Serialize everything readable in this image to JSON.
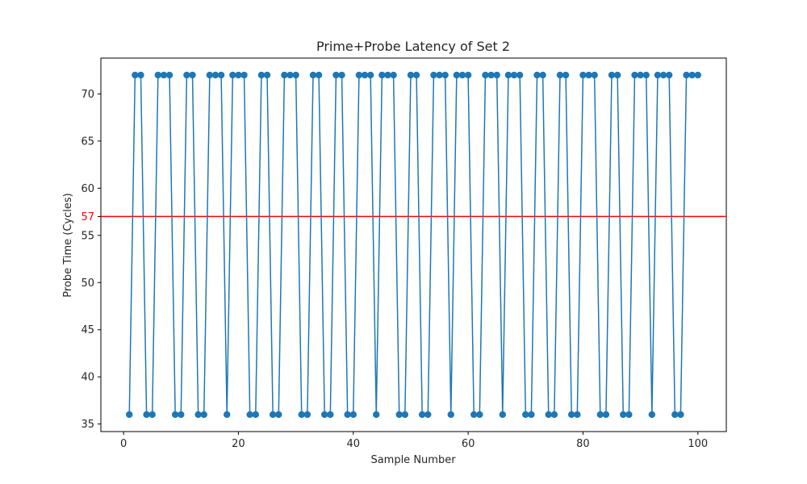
{
  "chart_data": {
    "type": "line",
    "title": "Prime+Probe Latency of Set 2",
    "xlabel": "Sample Number",
    "ylabel": "Probe Time (Cycles)",
    "xlim": [
      -3.95,
      104.95
    ],
    "ylim": [
      34.2,
      73.8
    ],
    "xticks": [
      0,
      20,
      40,
      60,
      80,
      100
    ],
    "yticks": [
      35,
      40,
      45,
      50,
      55,
      60,
      65,
      70
    ],
    "grid": false,
    "legend": "none",
    "threshold": {
      "value": 57,
      "label": "57",
      "color": "#ff0000"
    },
    "series": [
      {
        "color": "#1f77b4",
        "marker": "circle",
        "x": [
          1,
          2,
          3,
          4,
          5,
          6,
          7,
          8,
          9,
          10,
          11,
          12,
          13,
          14,
          15,
          16,
          17,
          18,
          19,
          20,
          21,
          22,
          23,
          24,
          25,
          26,
          27,
          28,
          29,
          30,
          31,
          32,
          33,
          34,
          35,
          36,
          37,
          38,
          39,
          40,
          41,
          42,
          43,
          44,
          45,
          46,
          47,
          48,
          49,
          50,
          51,
          52,
          53,
          54,
          55,
          56,
          57,
          58,
          59,
          60,
          61,
          62,
          63,
          64,
          65,
          66,
          67,
          68,
          69,
          70,
          71,
          72,
          73,
          74,
          75,
          76,
          77,
          78,
          79,
          80,
          81,
          82,
          83,
          84,
          85,
          86,
          87,
          88,
          89,
          90,
          91,
          92,
          93,
          94,
          95,
          96,
          97,
          98,
          99,
          100
        ],
        "values": [
          36,
          72,
          72,
          36,
          36,
          72,
          72,
          72,
          36,
          36,
          72,
          72,
          36,
          36,
          72,
          72,
          72,
          36,
          72,
          72,
          72,
          36,
          36,
          72,
          72,
          36,
          36,
          72,
          72,
          72,
          36,
          36,
          72,
          72,
          36,
          36,
          72,
          72,
          36,
          36,
          72,
          72,
          72,
          36,
          72,
          72,
          72,
          36,
          36,
          72,
          72,
          36,
          36,
          72,
          72,
          72,
          36,
          72,
          72,
          72,
          36,
          36,
          72,
          72,
          72,
          36,
          72,
          72,
          72,
          36,
          36,
          72,
          72,
          36,
          36,
          72,
          72,
          36,
          36,
          72,
          72,
          72,
          36,
          36,
          72,
          72,
          36,
          36,
          72,
          72,
          72,
          36,
          72,
          72,
          72,
          36,
          36,
          72,
          72,
          72
        ]
      }
    ]
  }
}
